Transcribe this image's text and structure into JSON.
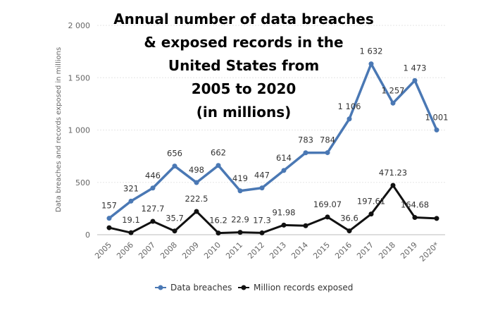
{
  "colors": {
    "breaches": "#4a78b4",
    "records": "#111111",
    "grid": "#e6e6e6",
    "axis": "#bbbbbb"
  },
  "chart_data": {
    "type": "line",
    "title_lines": [
      "Annual number of data breaches",
      "&  exposed records in the",
      "United States from",
      "2005 to 2020",
      "(in millions)"
    ],
    "ylabel": "Data breaches and records exposed in millions",
    "ylim": [
      0,
      2000
    ],
    "yticks": [
      0,
      500,
      1000,
      1500,
      2000
    ],
    "ytick_labels": [
      "0",
      "500",
      "1 000",
      "1 500",
      "2 000"
    ],
    "grid": true,
    "legend_position": "bottom",
    "categories": [
      "2005",
      "2006",
      "2007",
      "2008",
      "2009",
      "2010",
      "2011",
      "2012",
      "2013",
      "2014",
      "2015",
      "2016",
      "2017",
      "2018",
      "2019",
      "2020*"
    ],
    "series": [
      {
        "name": "Data breaches",
        "color_key": "breaches",
        "values": [
          157,
          321,
          446,
          656,
          498,
          662,
          419,
          447,
          614,
          783,
          784,
          1106,
          1632,
          1257,
          1473,
          1001
        ],
        "labels": [
          "157",
          "321",
          "446",
          "656",
          "498",
          "662",
          "419",
          "447",
          "614",
          "783",
          "784",
          "1 106",
          "1 632",
          "1 257",
          "1 473",
          "1 001"
        ]
      },
      {
        "name": "Million records exposed",
        "color_key": "records",
        "values": [
          66.9,
          19.1,
          127.7,
          35.7,
          222.5,
          16.2,
          22.9,
          17.3,
          91.98,
          85.61,
          169.07,
          36.6,
          197.61,
          471.23,
          164.68,
          155.8
        ],
        "labels": [
          "",
          "19.1",
          "127.7",
          "35.7",
          "222.5",
          "16.2",
          "22.9",
          "17.3",
          "91.98",
          "",
          "169.07",
          "36.6",
          "197.61",
          "471.23",
          "164.68",
          ""
        ]
      }
    ]
  }
}
